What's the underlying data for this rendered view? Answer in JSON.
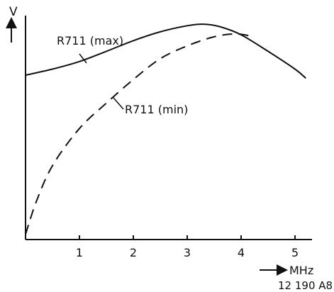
{
  "chart_data": {
    "type": "line",
    "title": "",
    "ylabel": "V",
    "xlabel": "MHz",
    "figure_code": "12 190 A8",
    "xlim": [
      0,
      5.3
    ],
    "ylim": [
      0,
      1
    ],
    "x_ticks": [
      {
        "value": 1,
        "label": "1"
      },
      {
        "value": 2,
        "label": "2"
      },
      {
        "value": 3,
        "label": "3"
      },
      {
        "value": 4,
        "label": "4"
      },
      {
        "value": 5,
        "label": "5"
      }
    ],
    "series": [
      {
        "name": "R711 (max)",
        "style": "solid",
        "points": [
          [
            0.0,
            0.758
          ],
          [
            0.5,
            0.786
          ],
          [
            1.0,
            0.821
          ],
          [
            1.5,
            0.868
          ],
          [
            2.0,
            0.917
          ],
          [
            2.5,
            0.958
          ],
          [
            3.0,
            0.986
          ],
          [
            3.3,
            0.993
          ],
          [
            3.6,
            0.982
          ],
          [
            4.0,
            0.944
          ],
          [
            4.5,
            0.868
          ],
          [
            5.0,
            0.786
          ],
          [
            5.2,
            0.744
          ]
        ]
      },
      {
        "name": "R711 (min)",
        "style": "dashed",
        "points": [
          [
            0.0,
            0.024
          ],
          [
            0.2,
            0.175
          ],
          [
            0.5,
            0.341
          ],
          [
            1.0,
            0.512
          ],
          [
            1.5,
            0.629
          ],
          [
            2.0,
            0.738
          ],
          [
            2.5,
            0.834
          ],
          [
            3.0,
            0.893
          ],
          [
            3.5,
            0.935
          ],
          [
            3.9,
            0.948
          ],
          [
            4.2,
            0.937
          ]
        ]
      }
    ]
  }
}
